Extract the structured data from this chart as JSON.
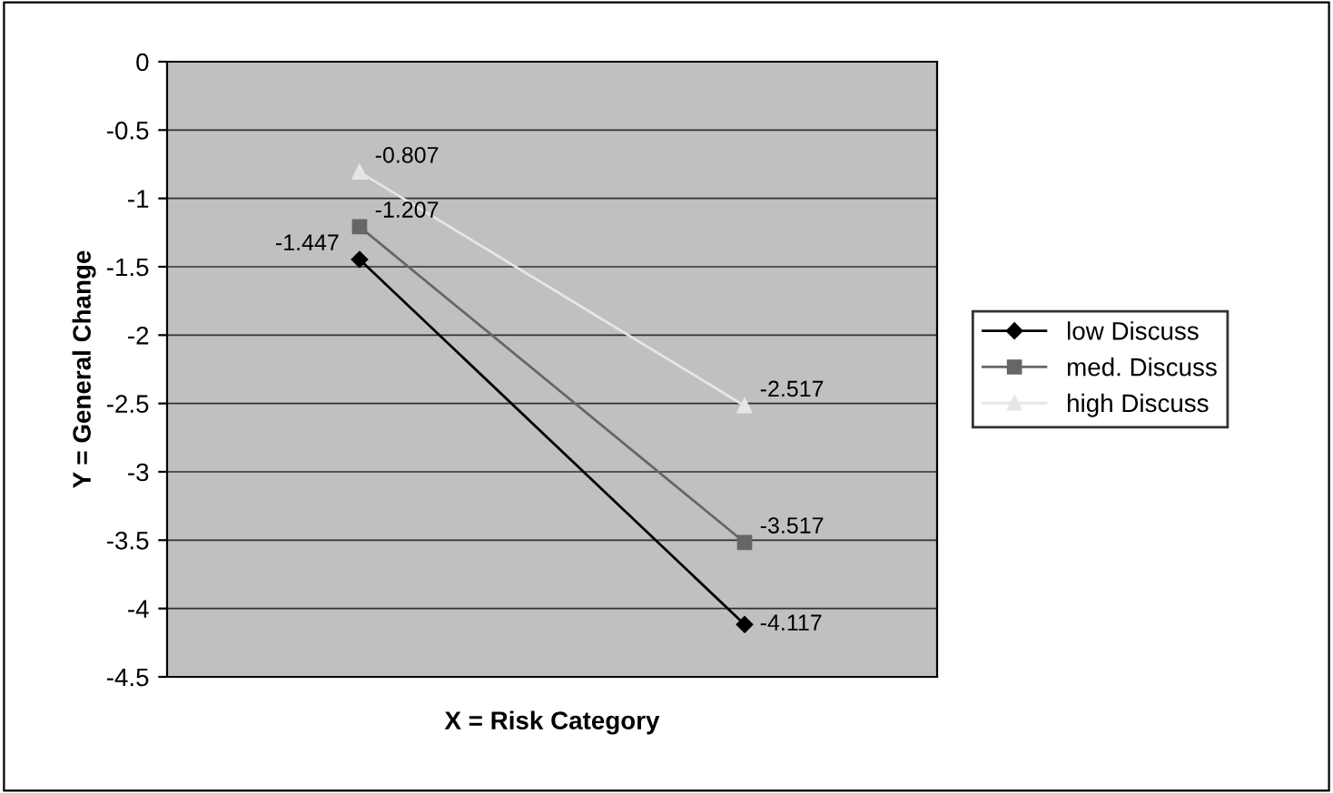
{
  "chart_data": {
    "type": "line",
    "xlabel": "X = Risk Category",
    "ylabel": "Y = General Change",
    "categories": [
      null,
      null
    ],
    "series": [
      {
        "name": "low Discuss",
        "color": "#000000",
        "marker": "diamond",
        "values": [
          -1.447,
          -4.117
        ]
      },
      {
        "name": "med. Discuss",
        "color": "#666666",
        "marker": "square",
        "values": [
          -1.207,
          -3.517
        ]
      },
      {
        "name": "high Discuss",
        "color": "#e6e6e6",
        "marker": "triangle",
        "values": [
          -0.807,
          -2.517
        ]
      }
    ],
    "ylim": [
      -4.5,
      0
    ],
    "yticks": [
      0,
      -0.5,
      -1,
      -1.5,
      -2,
      -2.5,
      -3,
      -3.5,
      -4,
      -4.5
    ],
    "grid": "y",
    "legend": "right",
    "data_labels": true
  }
}
